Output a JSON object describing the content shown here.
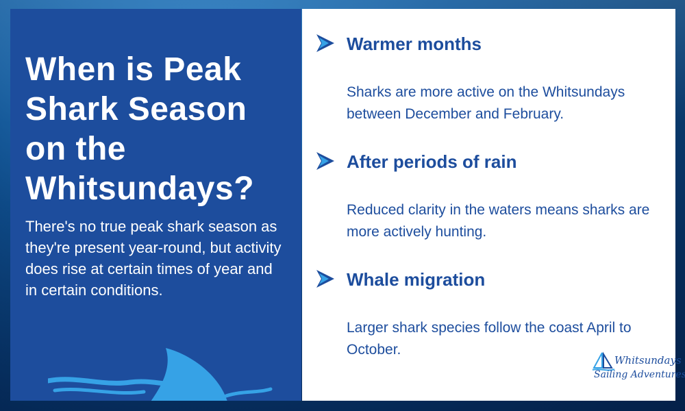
{
  "left": {
    "headline": "When is Peak Shark Season on the Whitsundays?",
    "intro": "There's no true peak shark season as they're present year-round, but activity does rise at certain times of year and in certain conditions."
  },
  "items": [
    {
      "title": "Warmer months",
      "description": "Sharks are more active on the Whitsundays between December and February.",
      "icon": "arrow-right-icon"
    },
    {
      "title": "After periods of rain",
      "description": "Reduced clarity in the waters means sharks are more actively hunting.",
      "icon": "arrow-right-icon"
    },
    {
      "title": "Whale migration",
      "description": "Larger shark species follow the coast April to October.",
      "icon": "arrow-right-icon"
    }
  ],
  "logo": {
    "line1": "Whitsundays",
    "line2": "Sailing Adventures"
  },
  "colors": {
    "accent": "#1d4d9d",
    "fin": "#36a2e6",
    "panel_text": "#ffffff"
  }
}
